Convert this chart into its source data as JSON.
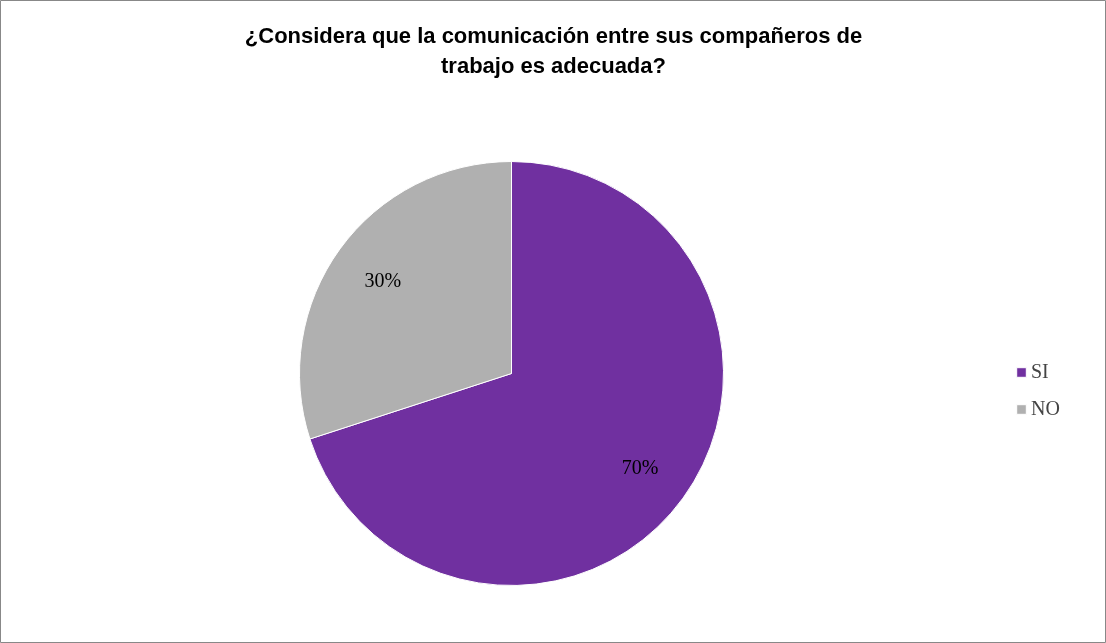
{
  "chart_data": {
    "type": "pie",
    "title": "¿Considera que la comunicación entre sus compañeros de trabajo es adecuada?",
    "categories": [
      "SI",
      "NO"
    ],
    "values": [
      70,
      30
    ],
    "colors": [
      "#7030a0",
      "#b0b0b0"
    ],
    "value_labels": [
      "70%",
      "30%"
    ],
    "legend": "right"
  }
}
